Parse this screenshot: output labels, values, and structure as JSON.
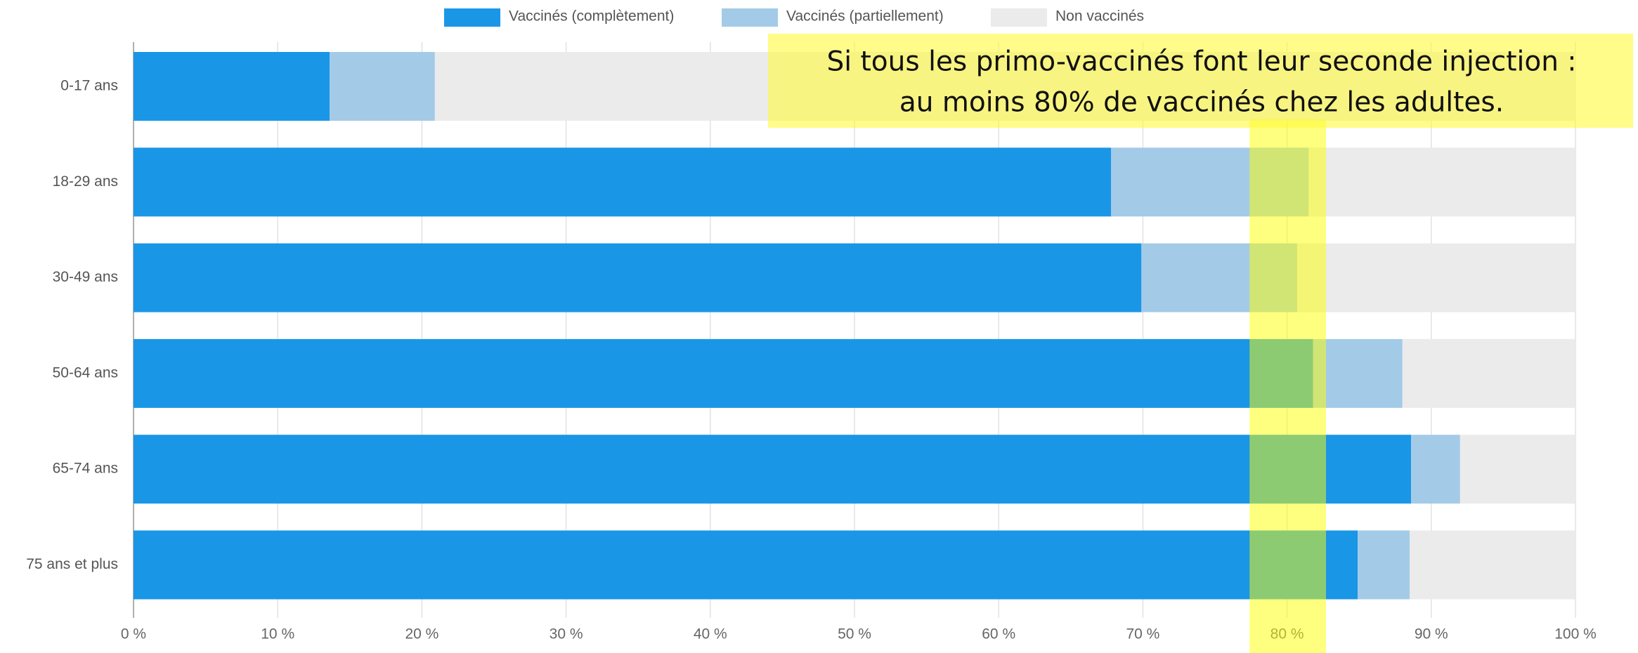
{
  "chart_data": {
    "type": "stacked_barh",
    "categories": [
      "0-17 ans",
      "18-29 ans",
      "30-49 ans",
      "50-64 ans",
      "65-74 ans",
      "75 ans et plus"
    ],
    "series": [
      {
        "name": "Vaccinés (complètement)",
        "color": "#1a96e6",
        "values": [
          13.6,
          67.8,
          69.9,
          81.8,
          88.6,
          84.9
        ]
      },
      {
        "name": "Vaccinés (partiellement)",
        "color": "#a3cbe8",
        "values": [
          7.3,
          13.7,
          10.8,
          6.2,
          3.4,
          3.6
        ]
      },
      {
        "name": "Non vaccinés",
        "color": "#ebebeb",
        "values": [
          79.1,
          18.5,
          19.3,
          12.0,
          8.0,
          11.5
        ]
      }
    ],
    "xlim": [
      0,
      100
    ],
    "xticks": [
      {
        "value": 0,
        "label": "0 %"
      },
      {
        "value": 10,
        "label": "10 %"
      },
      {
        "value": 20,
        "label": "20 %"
      },
      {
        "value": 30,
        "label": "30 %"
      },
      {
        "value": 40,
        "label": "40 %"
      },
      {
        "value": 50,
        "label": "50 %"
      },
      {
        "value": 60,
        "label": "60 %"
      },
      {
        "value": 70,
        "label": "70 %"
      },
      {
        "value": 80,
        "label": "80 %"
      },
      {
        "value": 90,
        "label": "90 %"
      },
      {
        "value": 100,
        "label": "100 %"
      }
    ],
    "grid": true,
    "legend": "top",
    "highlight_band": [
      77.4,
      82.7
    ],
    "annotation": [
      "Si tous les primo-vaccinés font leur seconde injection :",
      "au moins 80% de vaccinés chez les adultes."
    ]
  }
}
